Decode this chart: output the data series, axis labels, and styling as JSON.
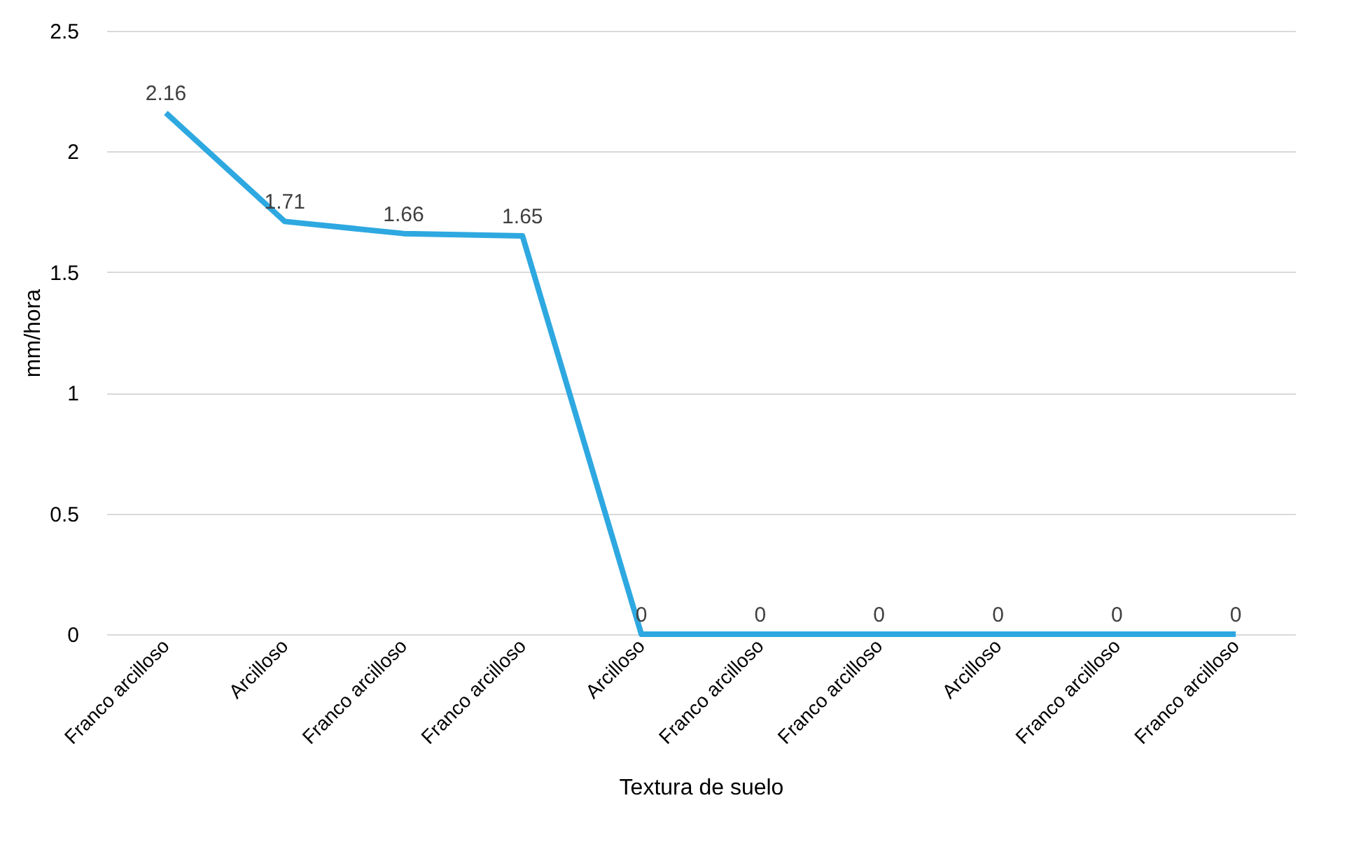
{
  "chart_data": {
    "type": "line",
    "xlabel": "Textura de suelo",
    "ylabel": "mm/hora",
    "categories": [
      "Franco arcilloso",
      "Arcilloso",
      "Franco arcilloso",
      "Franco arcilloso",
      "Arcilloso",
      "Franco arcilloso",
      "Franco arcilloso",
      "Arcilloso",
      "Franco arcilloso",
      "Franco arcilloso"
    ],
    "values": [
      2.16,
      1.71,
      1.66,
      1.65,
      0,
      0,
      0,
      0,
      0,
      0
    ],
    "color": "#2ea8e0",
    "ylim": [
      0,
      2.5
    ],
    "yticks": [
      0,
      0.5,
      1,
      1.5,
      2,
      2.5
    ],
    "grid": "y",
    "data_labels": true,
    "marker": "none",
    "line_style": "solid"
  }
}
